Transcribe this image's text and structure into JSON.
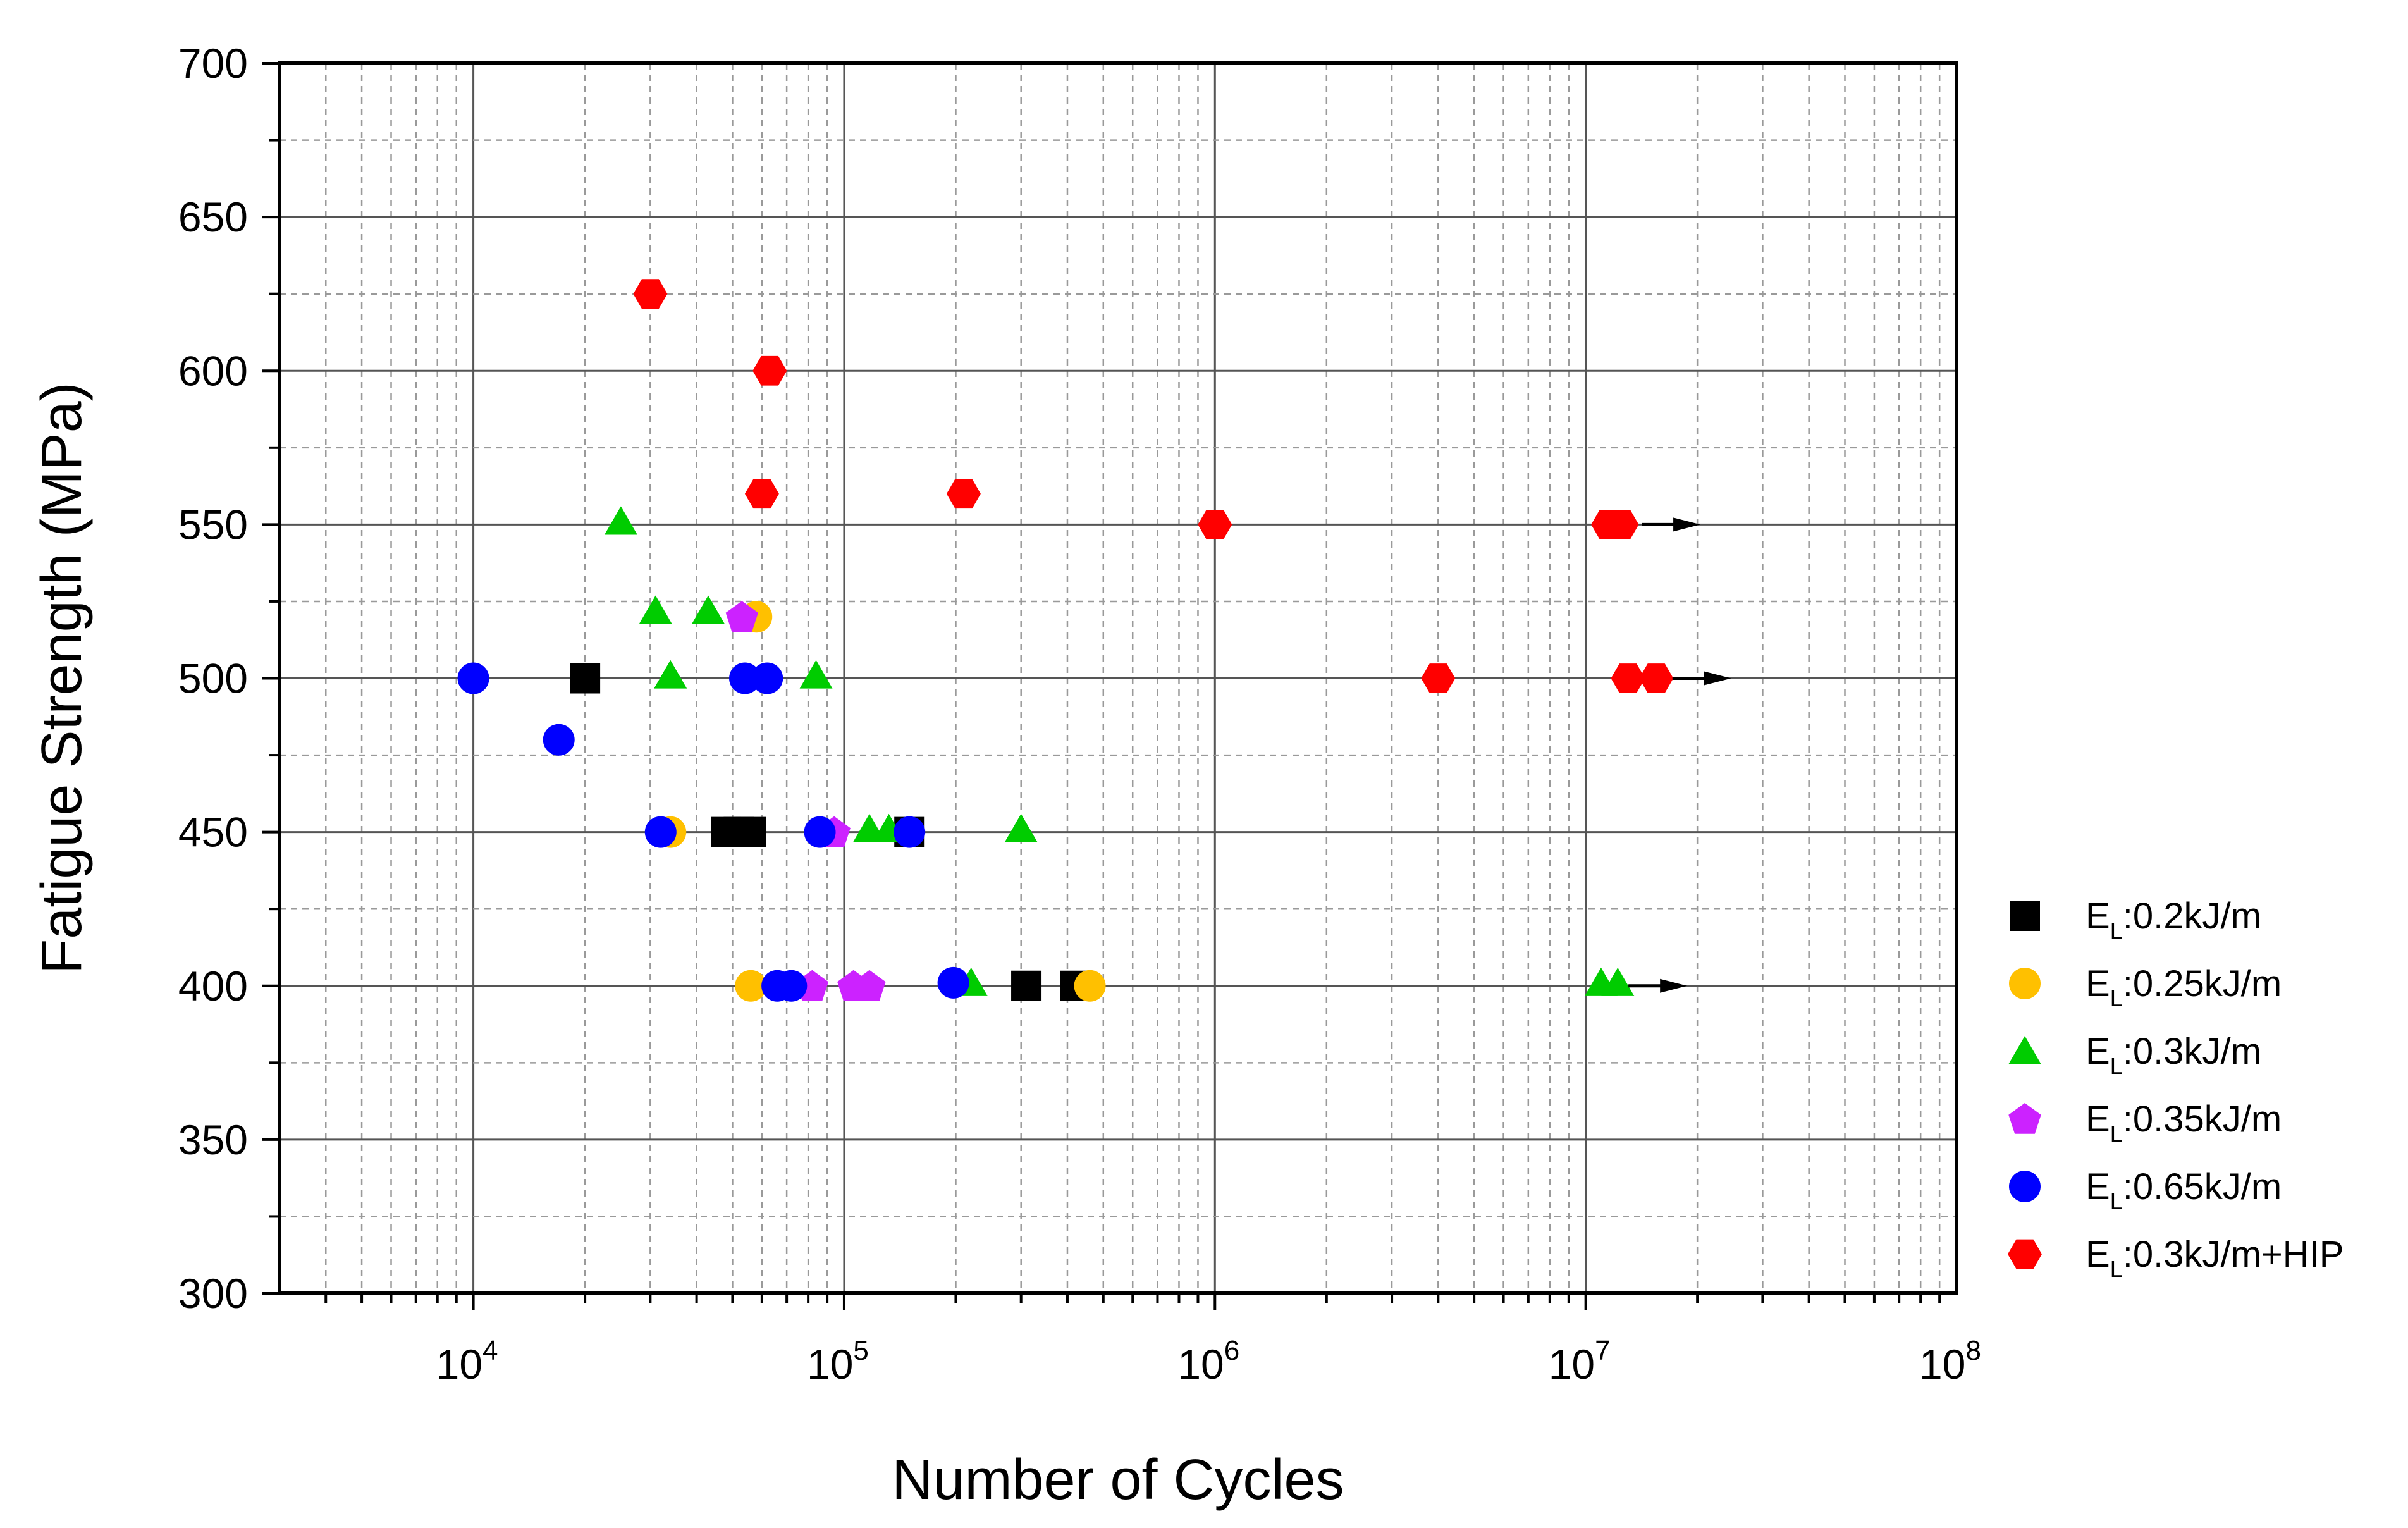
{
  "chart_data": {
    "type": "scatter",
    "title": "",
    "xlabel": "Number of Cycles",
    "ylabel": "Fatigue Strength (MPa)",
    "xscale": "log",
    "xlim": [
      3000,
      100000000
    ],
    "ylim": [
      300,
      700
    ],
    "grid": true,
    "legend_position": "right",
    "x_ticks": [
      {
        "value": 10000,
        "base": "10",
        "exp": "4"
      },
      {
        "value": 100000,
        "base": "10",
        "exp": "5"
      },
      {
        "value": 1000000,
        "base": "10",
        "exp": "6"
      },
      {
        "value": 10000000,
        "base": "10",
        "exp": "7"
      },
      {
        "value": 100000000,
        "base": "10",
        "exp": "8"
      }
    ],
    "y_ticks": [
      300,
      350,
      400,
      450,
      500,
      550,
      600,
      650,
      700
    ],
    "series": [
      {
        "name": "E_L:0.2kJ/m",
        "label_main": "E",
        "label_sub": "L",
        "label_rest": ":0.2kJ/m",
        "marker": "square",
        "color": "#000000",
        "points": [
          [
            20000,
            500
          ],
          [
            48000,
            450
          ],
          [
            52000,
            450
          ],
          [
            56000,
            450
          ],
          [
            150000,
            450
          ],
          [
            310000,
            400
          ],
          [
            420000,
            400
          ]
        ]
      },
      {
        "name": "E_L:0.25kJ/m",
        "label_main": "E",
        "label_sub": "L",
        "label_rest": ":0.25kJ/m",
        "marker": "circle",
        "color": "#ffc000",
        "points": [
          [
            58000,
            520
          ],
          [
            34000,
            450
          ],
          [
            56000,
            400
          ],
          [
            460000,
            400
          ]
        ]
      },
      {
        "name": "E_L:0.3kJ/m",
        "label_main": "E",
        "label_sub": "L",
        "label_rest": ":0.3kJ/m",
        "marker": "triangle",
        "color": "#00cc00",
        "points": [
          [
            25000,
            551
          ],
          [
            31000,
            522
          ],
          [
            43000,
            522
          ],
          [
            34000,
            501
          ],
          [
            84000,
            501
          ],
          [
            117000,
            451
          ],
          [
            132000,
            451
          ],
          [
            300000,
            451
          ],
          [
            220000,
            401
          ],
          [
            11000000,
            401
          ],
          [
            12200000,
            401
          ]
        ]
      },
      {
        "name": "E_L:0.35kJ/m",
        "label_main": "E",
        "label_sub": "L",
        "label_rest": ":0.35kJ/m",
        "marker": "pentagon",
        "color": "#cc22ff",
        "points": [
          [
            53000,
            520
          ],
          [
            94000,
            450
          ],
          [
            82000,
            400
          ],
          [
            106000,
            400
          ],
          [
            117000,
            400
          ]
        ]
      },
      {
        "name": "E_L:0.65kJ/m",
        "label_main": "E",
        "label_sub": "L",
        "label_rest": ":0.65kJ/m",
        "marker": "circle",
        "color": "#0000ff",
        "points": [
          [
            10000,
            500
          ],
          [
            54000,
            500
          ],
          [
            62000,
            500
          ],
          [
            17000,
            480
          ],
          [
            32000,
            450
          ],
          [
            86000,
            450
          ],
          [
            150000,
            450
          ],
          [
            66000,
            400
          ],
          [
            72000,
            400
          ],
          [
            197000,
            401
          ]
        ]
      },
      {
        "name": "E_L:0.3kJ/m+HIP",
        "label_main": "E",
        "label_sub": "L",
        "label_rest": ":0.3kJ/m+HIP",
        "marker": "hexagon",
        "color": "#ff0000",
        "points": [
          [
            30000,
            625
          ],
          [
            63000,
            600
          ],
          [
            60000,
            560
          ],
          [
            210000,
            560
          ],
          [
            1000000,
            550
          ],
          [
            11500000,
            550
          ],
          [
            12500000,
            550
          ],
          [
            4000000,
            500
          ],
          [
            13000000,
            500
          ],
          [
            15500000,
            500
          ]
        ]
      }
    ],
    "runout_arrows": [
      {
        "x": 19000000,
        "y": 550
      },
      {
        "x": 23000000,
        "y": 500
      },
      {
        "x": 17500000,
        "y": 400
      }
    ]
  }
}
